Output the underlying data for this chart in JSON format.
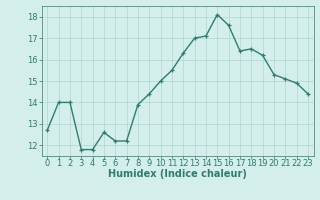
{
  "x": [
    0,
    1,
    2,
    3,
    4,
    5,
    6,
    7,
    8,
    9,
    10,
    11,
    12,
    13,
    14,
    15,
    16,
    17,
    18,
    19,
    20,
    21,
    22,
    23
  ],
  "y": [
    12.7,
    14.0,
    14.0,
    11.8,
    11.8,
    12.6,
    12.2,
    12.2,
    13.9,
    14.4,
    15.0,
    15.5,
    16.3,
    17.0,
    17.1,
    18.1,
    17.6,
    16.4,
    16.5,
    16.2,
    15.3,
    15.1,
    14.9,
    14.4
  ],
  "xlabel": "Humidex (Indice chaleur)",
  "bg_color": "#d4eeec",
  "line_color": "#2e7d6e",
  "marker": "+",
  "ylim": [
    11.5,
    18.5
  ],
  "xlim": [
    -0.5,
    23.5
  ],
  "yticks": [
    12,
    13,
    14,
    15,
    16,
    17,
    18
  ],
  "xticks": [
    0,
    1,
    2,
    3,
    4,
    5,
    6,
    7,
    8,
    9,
    10,
    11,
    12,
    13,
    14,
    15,
    16,
    17,
    18,
    19,
    20,
    21,
    22,
    23
  ],
  "grid_color": "#aed6d2",
  "tick_color": "#2e7d6e",
  "label_color": "#2e7d6e",
  "xlabel_fontsize": 7,
  "tick_fontsize": 6,
  "linewidth": 1.0,
  "markersize": 3.5
}
